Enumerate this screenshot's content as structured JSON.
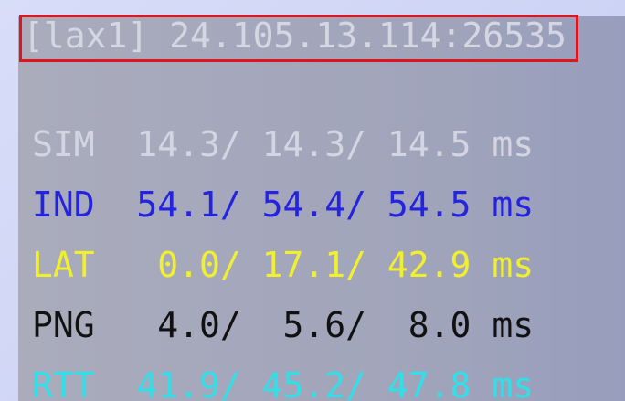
{
  "header": {
    "title": "[lax1] 24.105.13.114:26535"
  },
  "rows": [
    {
      "label": "SIM",
      "min": "14.3/",
      "avg": "14.3/",
      "max": "14.5",
      "unit": "ms",
      "color": "#d3d6e2"
    },
    {
      "label": "IND",
      "min": "54.1/",
      "avg": "54.4/",
      "max": "54.5",
      "unit": "ms",
      "color": "#2424e0"
    },
    {
      "label": "LAT",
      "min": "0.0/",
      "avg": "17.1/",
      "max": "42.9",
      "unit": "ms",
      "color": "#f0f030"
    },
    {
      "label": "PNG",
      "min": "4.0/",
      "avg": "5.6/",
      "max": "8.0",
      "unit": "ms",
      "color": "#111111"
    },
    {
      "label": "RTT",
      "min": "41.9/",
      "avg": "45.2/",
      "max": "47.8",
      "unit": "ms",
      "color": "#30e0e8"
    }
  ]
}
